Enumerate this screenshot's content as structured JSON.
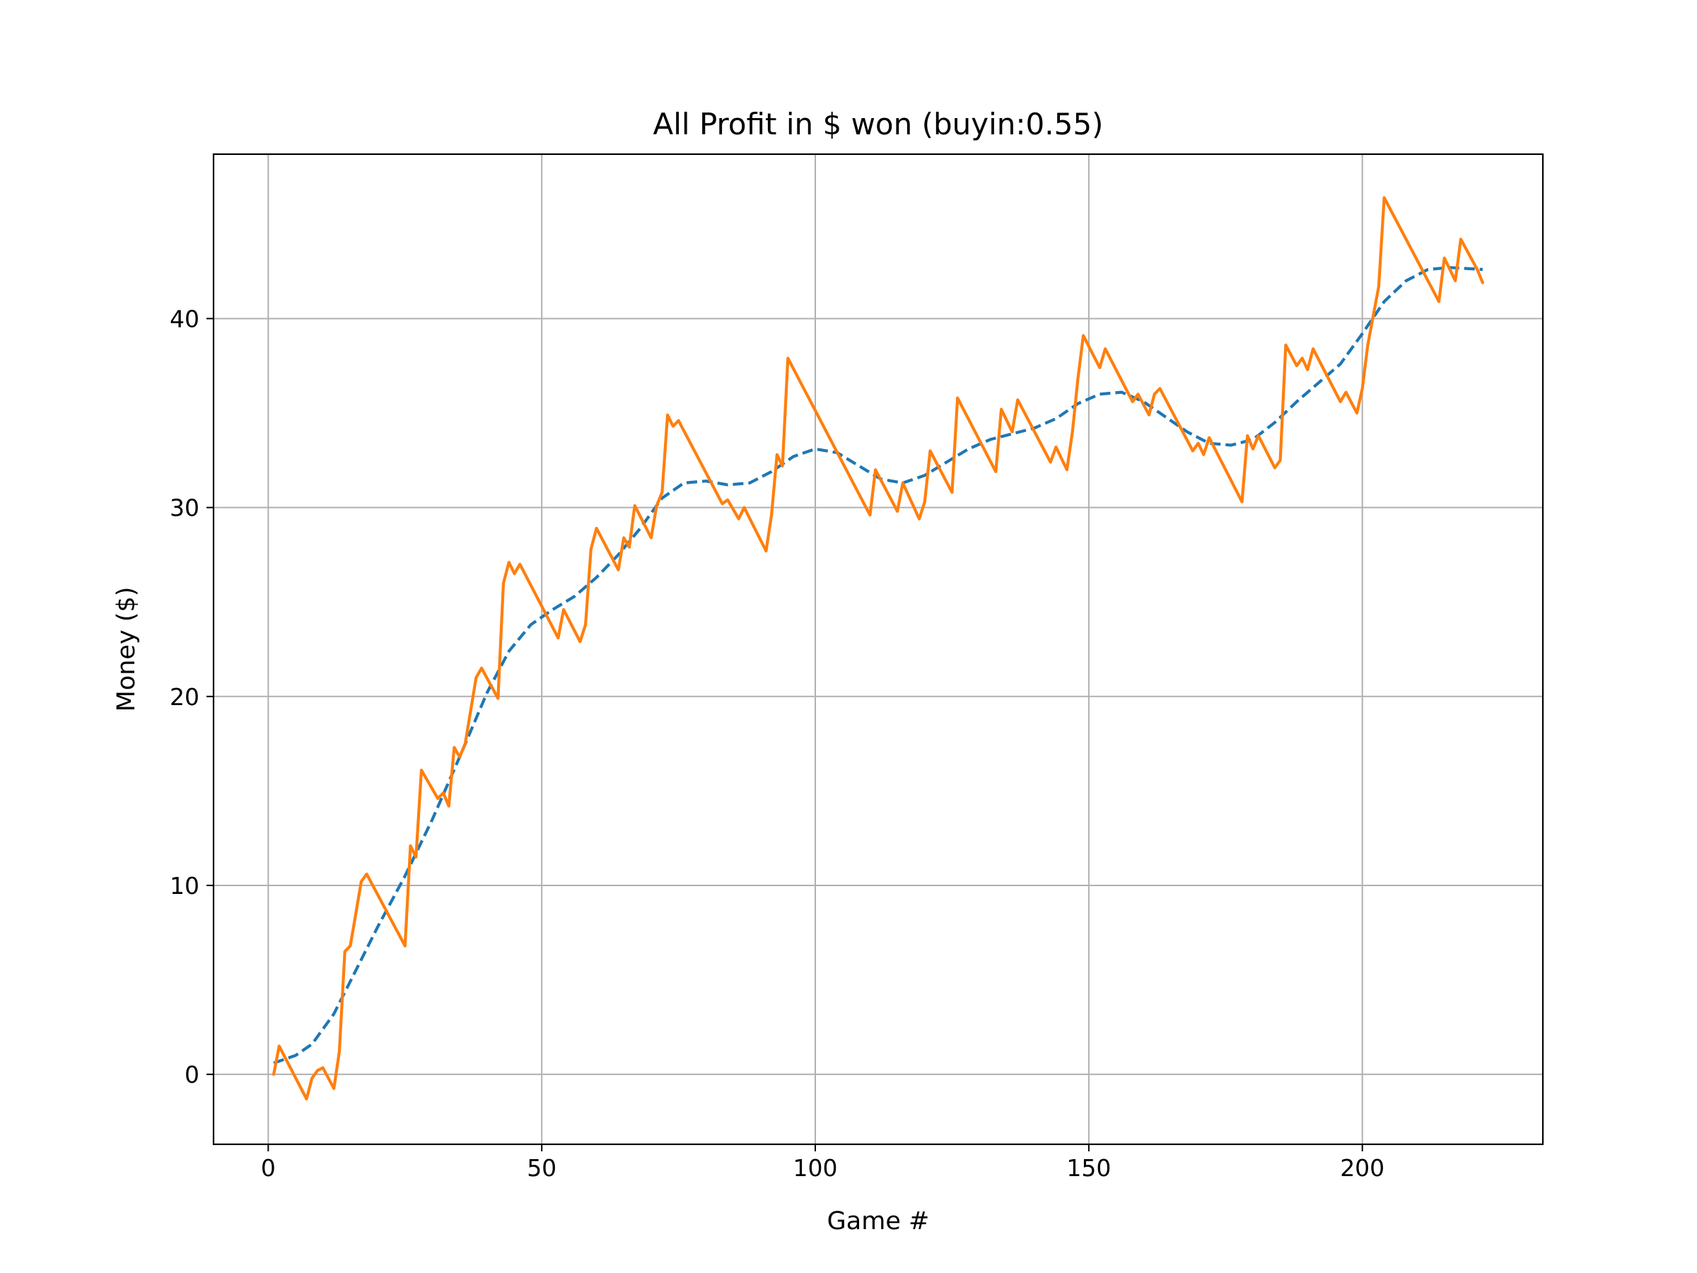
{
  "chart_data": {
    "type": "line",
    "title": "All Profit in $ won (buyin:0.55)",
    "xlabel": "Game #",
    "ylabel": "Money ($)",
    "xlim": [
      -10,
      233
    ],
    "ylim": [
      -3.7,
      48.7
    ],
    "xticks": [
      0,
      50,
      100,
      150,
      200
    ],
    "yticks": [
      0,
      10,
      20,
      30,
      40
    ],
    "grid": true,
    "legend": "none",
    "series": [
      {
        "style": "dashed",
        "color": "#1f77b4",
        "points": [
          [
            1,
            0.6
          ],
          [
            5,
            1.0
          ],
          [
            8,
            1.6
          ],
          [
            12,
            3.2
          ],
          [
            16,
            5.5
          ],
          [
            20,
            7.8
          ],
          [
            25,
            10.5
          ],
          [
            30,
            13.5
          ],
          [
            35,
            16.8
          ],
          [
            40,
            20.2
          ],
          [
            44,
            22.4
          ],
          [
            48,
            23.8
          ],
          [
            52,
            24.6
          ],
          [
            56,
            25.3
          ],
          [
            60,
            26.3
          ],
          [
            64,
            27.5
          ],
          [
            68,
            28.9
          ],
          [
            72,
            30.5
          ],
          [
            76,
            31.3
          ],
          [
            80,
            31.4
          ],
          [
            84,
            31.2
          ],
          [
            88,
            31.3
          ],
          [
            92,
            31.9
          ],
          [
            96,
            32.7
          ],
          [
            100,
            33.1
          ],
          [
            104,
            32.9
          ],
          [
            108,
            32.2
          ],
          [
            112,
            31.5
          ],
          [
            116,
            31.3
          ],
          [
            120,
            31.7
          ],
          [
            124,
            32.4
          ],
          [
            128,
            33.1
          ],
          [
            132,
            33.6
          ],
          [
            136,
            33.9
          ],
          [
            140,
            34.2
          ],
          [
            144,
            34.7
          ],
          [
            148,
            35.5
          ],
          [
            152,
            36.0
          ],
          [
            156,
            36.1
          ],
          [
            160,
            35.6
          ],
          [
            164,
            34.8
          ],
          [
            168,
            34.0
          ],
          [
            172,
            33.4
          ],
          [
            176,
            33.3
          ],
          [
            180,
            33.6
          ],
          [
            184,
            34.5
          ],
          [
            188,
            35.6
          ],
          [
            192,
            36.6
          ],
          [
            196,
            37.6
          ],
          [
            200,
            39.2
          ],
          [
            204,
            40.9
          ],
          [
            208,
            42.0
          ],
          [
            212,
            42.6
          ],
          [
            216,
            42.7
          ],
          [
            222,
            42.6
          ]
        ]
      },
      {
        "style": "solid",
        "color": "#ff7f0e",
        "points": [
          [
            1,
            0.0
          ],
          [
            2,
            1.5
          ],
          [
            7,
            -1.3
          ],
          [
            8,
            -0.2
          ],
          [
            9,
            0.2
          ],
          [
            10,
            0.35
          ],
          [
            12,
            -0.75
          ],
          [
            13,
            1.2
          ],
          [
            14,
            6.5
          ],
          [
            15,
            6.8
          ],
          [
            16,
            8.5
          ],
          [
            17,
            10.2
          ],
          [
            18,
            10.6
          ],
          [
            25,
            6.8
          ],
          [
            26,
            12.1
          ],
          [
            27,
            11.5
          ],
          [
            28,
            16.1
          ],
          [
            31,
            14.6
          ],
          [
            32,
            14.9
          ],
          [
            33,
            14.2
          ],
          [
            34,
            17.3
          ],
          [
            35,
            16.8
          ],
          [
            36,
            17.5
          ],
          [
            38,
            21.0
          ],
          [
            39,
            21.5
          ],
          [
            42,
            19.9
          ],
          [
            43,
            26.0
          ],
          [
            44,
            27.1
          ],
          [
            45,
            26.5
          ],
          [
            46,
            27.0
          ],
          [
            53,
            23.1
          ],
          [
            54,
            24.6
          ],
          [
            57,
            22.9
          ],
          [
            58,
            23.8
          ],
          [
            59,
            27.8
          ],
          [
            60,
            28.9
          ],
          [
            64,
            26.7
          ],
          [
            65,
            28.4
          ],
          [
            66,
            27.9
          ],
          [
            67,
            30.1
          ],
          [
            70,
            28.4
          ],
          [
            71,
            30.1
          ],
          [
            72,
            30.8
          ],
          [
            73,
            34.9
          ],
          [
            74,
            34.3
          ],
          [
            75,
            34.6
          ],
          [
            83,
            30.2
          ],
          [
            84,
            30.4
          ],
          [
            86,
            29.4
          ],
          [
            87,
            30.0
          ],
          [
            91,
            27.7
          ],
          [
            92,
            29.6
          ],
          [
            93,
            32.8
          ],
          [
            94,
            32.2
          ],
          [
            95,
            37.9
          ],
          [
            110,
            29.6
          ],
          [
            111,
            32.0
          ],
          [
            115,
            29.8
          ],
          [
            116,
            31.3
          ],
          [
            119,
            29.4
          ],
          [
            120,
            30.3
          ],
          [
            121,
            33.0
          ],
          [
            125,
            30.8
          ],
          [
            126,
            35.8
          ],
          [
            133,
            31.9
          ],
          [
            134,
            35.2
          ],
          [
            136,
            34.0
          ],
          [
            137,
            35.7
          ],
          [
            143,
            32.4
          ],
          [
            144,
            33.2
          ],
          [
            146,
            32.0
          ],
          [
            147,
            34.0
          ],
          [
            148,
            36.8
          ],
          [
            149,
            39.1
          ],
          [
            152,
            37.4
          ],
          [
            153,
            38.4
          ],
          [
            158,
            35.6
          ],
          [
            159,
            36.0
          ],
          [
            161,
            34.9
          ],
          [
            162,
            36.0
          ],
          [
            163,
            36.3
          ],
          [
            169,
            33.0
          ],
          [
            170,
            33.4
          ],
          [
            171,
            32.8
          ],
          [
            172,
            33.7
          ],
          [
            178,
            30.3
          ],
          [
            179,
            33.8
          ],
          [
            180,
            33.1
          ],
          [
            181,
            33.8
          ],
          [
            184,
            32.1
          ],
          [
            185,
            32.5
          ],
          [
            186,
            38.6
          ],
          [
            188,
            37.5
          ],
          [
            189,
            37.9
          ],
          [
            190,
            37.3
          ],
          [
            191,
            38.4
          ],
          [
            196,
            35.6
          ],
          [
            197,
            36.1
          ],
          [
            199,
            35.0
          ],
          [
            200,
            36.3
          ],
          [
            201,
            38.6
          ],
          [
            203,
            41.7
          ],
          [
            204,
            46.4
          ],
          [
            214,
            40.9
          ],
          [
            215,
            43.2
          ],
          [
            217,
            42.0
          ],
          [
            218,
            44.2
          ],
          [
            221,
            42.6
          ],
          [
            222,
            41.9
          ]
        ]
      }
    ]
  }
}
